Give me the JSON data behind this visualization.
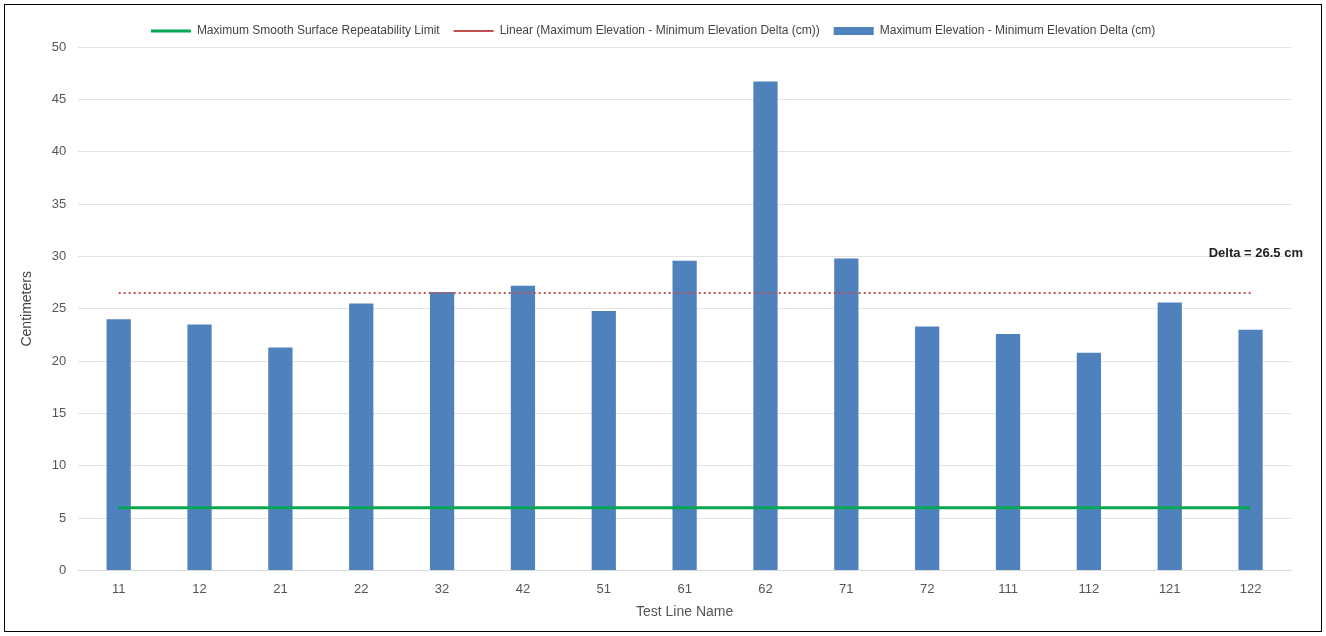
{
  "chart_data": {
    "type": "bar",
    "xlabel": "Test Line Name",
    "ylabel": "Centimeters",
    "categories": [
      "11",
      "12",
      "21",
      "22",
      "32",
      "42",
      "51",
      "61",
      "62",
      "71",
      "72",
      "111",
      "112",
      "121",
      "122"
    ],
    "series": [
      {
        "name": "Maximum Elevation - Minimum Elevation Delta (cm)",
        "color": "#4f81bd",
        "values": [
          24.0,
          23.5,
          21.3,
          25.5,
          26.6,
          27.2,
          24.8,
          29.6,
          46.7,
          29.8,
          23.3,
          22.6,
          20.8,
          25.6,
          23.0
        ]
      },
      {
        "name": "Maximum Smooth Surface Repeatability Limit",
        "type": "line",
        "color": "#00a651",
        "line_style": "solid",
        "values": [
          6,
          6,
          6,
          6,
          6,
          6,
          6,
          6,
          6,
          6,
          6,
          6,
          6,
          6,
          6
        ]
      },
      {
        "name": "Linear (Maximum Elevation - Minimum Elevation Delta (cm))",
        "type": "line",
        "color": "#c0504d",
        "line_style": "dotted",
        "values": [
          26.5,
          26.5,
          26.5,
          26.5,
          26.5,
          26.5,
          26.5,
          26.5,
          26.5,
          26.5,
          26.5,
          26.5,
          26.5,
          26.5,
          26.5
        ]
      }
    ],
    "ylim": [
      0,
      50
    ],
    "yticks": [
      0,
      5,
      10,
      15,
      20,
      25,
      30,
      35,
      40,
      45,
      50
    ],
    "grid": "y",
    "legend": "top",
    "marker": "none",
    "annotations": [
      "Delta = 26.5 cm"
    ]
  }
}
